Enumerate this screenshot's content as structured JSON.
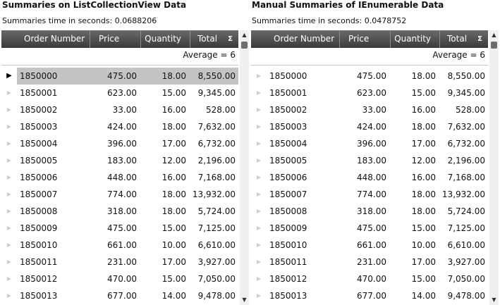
{
  "left": {
    "title": "Summaries on ListCollectionView Data",
    "time": "Summaries time in seconds: 0.0688206",
    "average": "Average = 6"
  },
  "right": {
    "title": "Manual Summaries of IEnumerable Data",
    "time": "Summaries time in seconds: 0.0478752",
    "average": "Average = 6"
  },
  "columns": {
    "order": "Order Number",
    "price": "Price",
    "quantity": "Quantity",
    "total": "Total",
    "sigma": "Σ"
  },
  "icons": {
    "row_indicator": "triangle-right-icon",
    "scroll_up": "triangle-up-icon",
    "scroll_down": "triangle-down-icon"
  },
  "left_selected_row": 0,
  "rows": [
    [
      "1850000",
      "475.00",
      "18.00",
      "8,550.00"
    ],
    [
      "1850001",
      "623.00",
      "15.00",
      "9,345.00"
    ],
    [
      "1850002",
      "33.00",
      "16.00",
      "528.00"
    ],
    [
      "1850003",
      "424.00",
      "18.00",
      "7,632.00"
    ],
    [
      "1850004",
      "396.00",
      "17.00",
      "6,732.00"
    ],
    [
      "1850005",
      "183.00",
      "12.00",
      "2,196.00"
    ],
    [
      "1850006",
      "448.00",
      "16.00",
      "7,168.00"
    ],
    [
      "1850007",
      "774.00",
      "18.00",
      "13,932.00"
    ],
    [
      "1850008",
      "318.00",
      "18.00",
      "5,724.00"
    ],
    [
      "1850009",
      "475.00",
      "15.00",
      "7,125.00"
    ],
    [
      "1850010",
      "661.00",
      "10.00",
      "6,610.00"
    ],
    [
      "1850011",
      "231.00",
      "17.00",
      "3,927.00"
    ],
    [
      "1850012",
      "470.00",
      "15.00",
      "7,050.00"
    ],
    [
      "1850013",
      "677.00",
      "14.00",
      "9,478.00"
    ]
  ],
  "right_last_row": [
    "1850013",
    "677.00",
    "14.00",
    "9,478.00"
  ]
}
